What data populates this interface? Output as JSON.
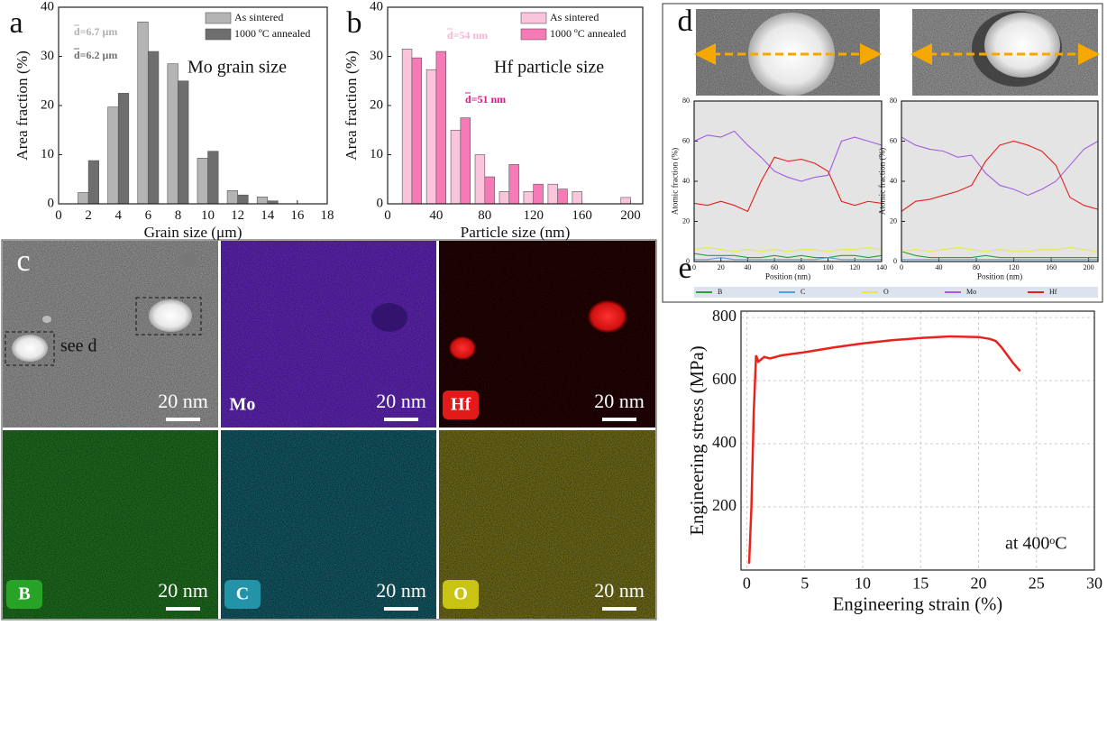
{
  "chart_data": [
    {
      "type": "bar",
      "panel_label": "a",
      "title": "Mo grain size",
      "x_label": "Grain size (μm)",
      "y_label": "Area fraction (%)",
      "x": [
        2,
        4,
        6,
        8,
        10,
        12,
        14
      ],
      "series": [
        {
          "name": "As sintered",
          "color": "#b4b4b4",
          "values": [
            2.3,
            19.7,
            37,
            28.5,
            9.3,
            2.7,
            1.4
          ]
        },
        {
          "name": "1000 ºC annealed",
          "color": "#6e6e6e",
          "values": [
            8.8,
            22.5,
            31,
            25,
            10.7,
            1.8,
            0.6
          ]
        }
      ],
      "annotations": [
        {
          "text": "d=6.7 μm",
          "color": "#b0b0b0"
        },
        {
          "text": "d=6.2 μm",
          "color": "#707070"
        }
      ],
      "xlim": [
        0,
        18
      ],
      "xticks": [
        0,
        2,
        4,
        6,
        8,
        10,
        12,
        14,
        16,
        18
      ],
      "ylim": [
        0,
        40
      ],
      "yticks": [
        0,
        10,
        20,
        30,
        40
      ]
    },
    {
      "type": "bar",
      "panel_label": "b",
      "title": "Hf particle size",
      "x_label": "Particle size (nm)",
      "y_label": "Area fraction (%)",
      "x": [
        20,
        40,
        60,
        80,
        100,
        120,
        140,
        160,
        180,
        200
      ],
      "series": [
        {
          "name": "As sintered",
          "color": "#f9c4dc",
          "values": [
            31.5,
            27.3,
            15,
            10,
            2.5,
            2.5,
            4,
            2.5,
            0,
            1.3
          ]
        },
        {
          "name": "1000 ºC annealed",
          "color": "#f57ab5",
          "values": [
            29.7,
            31,
            17.5,
            5.5,
            8,
            4,
            3,
            0,
            0,
            0
          ]
        }
      ],
      "annotations": [
        {
          "text": "d=54 nm",
          "color": "#f7b3d2"
        },
        {
          "text": "d=51 nm",
          "color": "#e0148c"
        }
      ],
      "xlim": [
        0,
        210
      ],
      "xticks": [
        0,
        40,
        80,
        120,
        160,
        200
      ],
      "ylim": [
        0,
        40
      ],
      "yticks": [
        0,
        10,
        20,
        30,
        40
      ]
    },
    {
      "type": "line",
      "panel_label": "d",
      "x_label": "Position (nm)",
      "y_label": "Atomic fraction (%)",
      "x": [
        0,
        10,
        20,
        30,
        40,
        50,
        60,
        70,
        80,
        90,
        100,
        110,
        120,
        130,
        140
      ],
      "series": [
        {
          "name": "B",
          "color": "#2e9e3a",
          "values": [
            4,
            3,
            3,
            3,
            2,
            2,
            3,
            2,
            3,
            2,
            2,
            3,
            3,
            2,
            3
          ]
        },
        {
          "name": "C",
          "color": "#4da3e0",
          "values": [
            1,
            1,
            2,
            1,
            1,
            1,
            1,
            1,
            1,
            1,
            2,
            1,
            1,
            1,
            1
          ]
        },
        {
          "name": "O",
          "color": "#e8e84a",
          "values": [
            6,
            7,
            6,
            5,
            6,
            5,
            6,
            5,
            6,
            6,
            5,
            6,
            6,
            7,
            6
          ]
        },
        {
          "name": "Mo",
          "color": "#a65ce0",
          "values": [
            60,
            63,
            62,
            65,
            58,
            52,
            45,
            42,
            40,
            42,
            43,
            60,
            62,
            60,
            58
          ]
        },
        {
          "name": "Hf",
          "color": "#e0201c",
          "values": [
            29,
            28,
            30,
            28,
            25,
            40,
            52,
            50,
            51,
            49,
            45,
            30,
            28,
            30,
            29
          ]
        }
      ],
      "xlim": [
        0,
        140
      ],
      "xticks": [
        0,
        20,
        40,
        60,
        80,
        100,
        120,
        140
      ],
      "ylim": [
        0,
        80
      ],
      "yticks": [
        0,
        20,
        40,
        60,
        80
      ]
    },
    {
      "type": "line",
      "x_label": "Position (nm)",
      "y_label": "Atomic fraction (%)",
      "x": [
        0,
        15,
        30,
        45,
        60,
        75,
        90,
        105,
        120,
        135,
        150,
        165,
        180,
        195,
        210
      ],
      "series": [
        {
          "color": "#2e9e3a",
          "values": [
            5,
            3,
            2,
            2,
            2,
            2,
            3,
            2,
            2,
            2,
            2,
            2,
            2,
            2,
            2
          ]
        },
        {
          "color": "#4da3e0",
          "values": [
            1,
            1,
            1,
            1,
            1,
            1,
            1,
            1,
            1,
            1,
            1,
            1,
            1,
            1,
            1
          ]
        },
        {
          "color": "#e8e84a",
          "values": [
            5,
            6,
            5,
            6,
            7,
            6,
            5,
            6,
            5,
            5,
            6,
            6,
            7,
            6,
            5
          ]
        },
        {
          "color": "#a65ce0",
          "values": [
            62,
            58,
            56,
            55,
            52,
            53,
            44,
            38,
            36,
            33,
            36,
            40,
            48,
            56,
            60
          ]
        },
        {
          "color": "#e0201c",
          "values": [
            25,
            30,
            31,
            33,
            35,
            38,
            50,
            58,
            60,
            58,
            55,
            48,
            32,
            28,
            26
          ]
        }
      ],
      "xlim": [
        0,
        210
      ],
      "xticks": [
        0,
        40,
        80,
        120,
        160,
        200
      ],
      "ylim": [
        0,
        80
      ],
      "yticks": [
        0,
        20,
        40,
        60,
        80
      ]
    },
    {
      "type": "line",
      "panel_label": "e",
      "x_label": "Engineering strain (%)",
      "y_label": "Engineering stress (MPa)",
      "x": [
        0.2,
        0.4,
        0.6,
        0.8,
        1,
        1.5,
        2,
        3,
        4,
        5,
        7.5,
        10,
        12.5,
        15,
        17.5,
        20,
        21,
        21.5,
        22,
        22.5,
        23,
        23.6
      ],
      "series": [
        {
          "color": "#e8231c",
          "values": [
            20,
            200,
            500,
            680,
            660,
            675,
            670,
            680,
            685,
            690,
            705,
            718,
            728,
            735,
            740,
            738,
            732,
            725,
            705,
            680,
            655,
            630
          ]
        }
      ],
      "annotations": [
        {
          "text": "at 400ᵒC",
          "color": "#111"
        }
      ],
      "grid": true,
      "xlim": [
        -0.5,
        30
      ],
      "xticks": [
        0,
        5,
        10,
        15,
        20,
        25,
        30
      ],
      "ylim": [
        0,
        820
      ],
      "yticks": [
        200,
        400,
        600,
        800
      ]
    }
  ],
  "panel_c": {
    "label": "c",
    "annotation": "see d",
    "scale_bar": "20 nm",
    "elements": [
      "Mo",
      "Hf",
      "B",
      "C",
      "O"
    ]
  }
}
